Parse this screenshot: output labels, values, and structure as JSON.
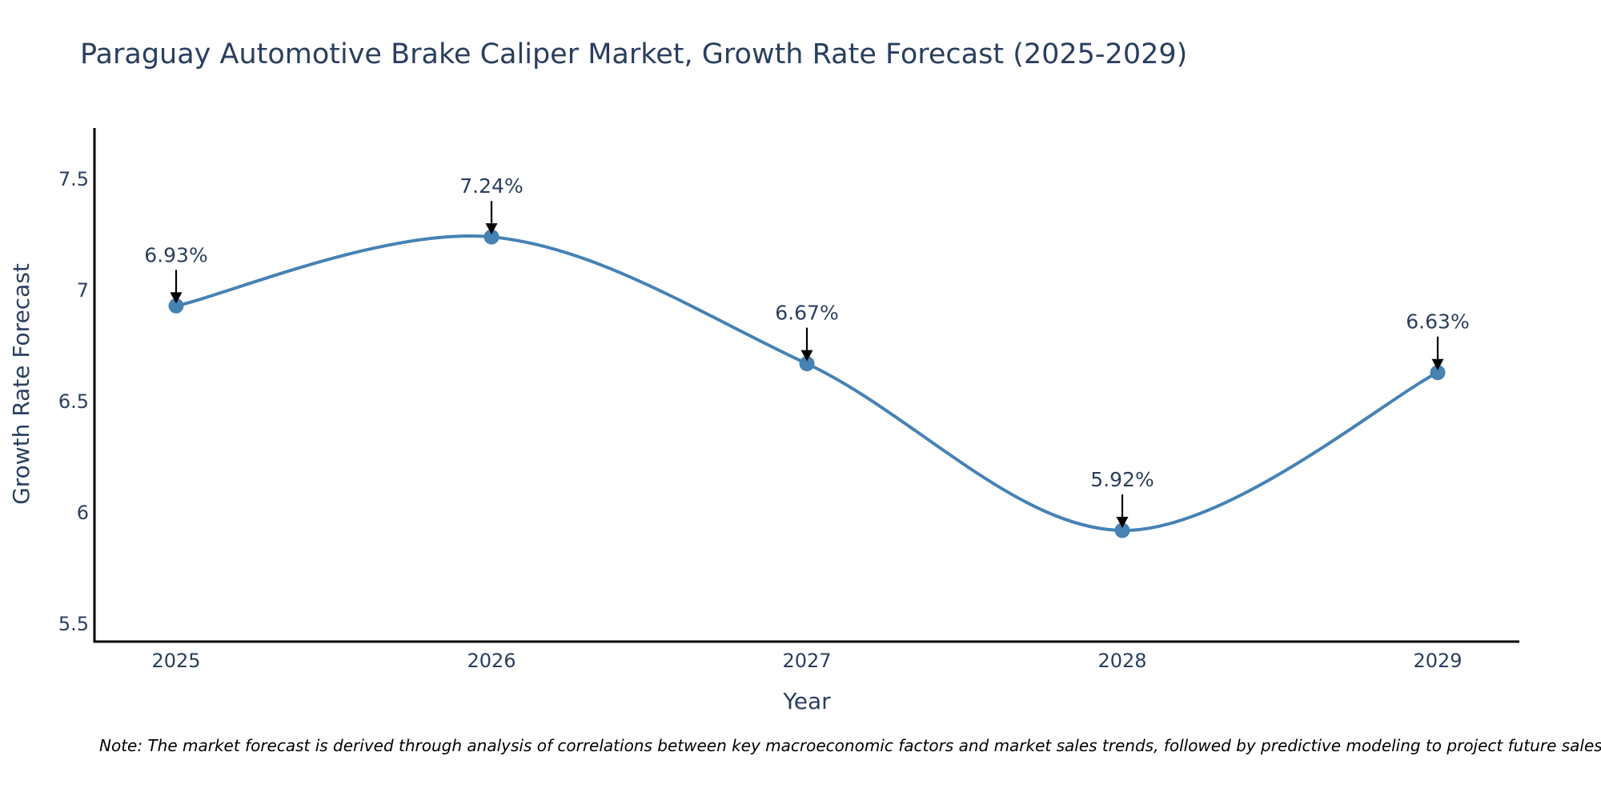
{
  "chart_data": {
    "type": "line",
    "title": "Paraguay Automotive Brake Caliper Market, Growth Rate Forecast (2025-2029)",
    "xlabel": "Year",
    "ylabel": "Growth Rate Forecast",
    "categories": [
      "2025",
      "2026",
      "2027",
      "2028",
      "2029"
    ],
    "values": [
      6.93,
      7.24,
      6.67,
      5.92,
      6.63
    ],
    "data_labels": [
      "6.93%",
      "7.24%",
      "6.67%",
      "5.92%",
      "6.63%"
    ],
    "ylim": [
      5.42,
      7.73
    ],
    "yticks": [
      5.5,
      6,
      6.5,
      7,
      7.5
    ],
    "ytick_labels": [
      "5.5",
      "6",
      "6.5",
      "7",
      "7.5"
    ],
    "line_shape": "spline",
    "grid": false,
    "colors": {
      "line": "#4682b4",
      "marker": "#4682b4",
      "arrow": "#000000",
      "text": "#2a3f5f",
      "axis": "#000000"
    },
    "note": "Note: The market forecast is derived through analysis of correlations between key macroeconomic factors and market sales trends, followed by predictive modeling to project future sales."
  }
}
